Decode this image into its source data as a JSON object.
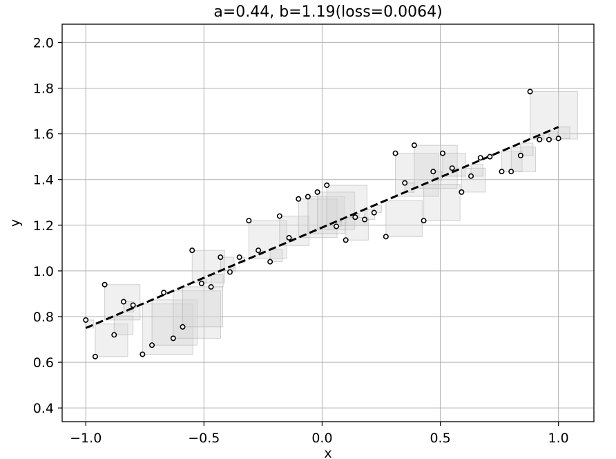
{
  "chart_data": {
    "type": "scatter",
    "title": "a=0.44, b=1.19(loss=0.0064)",
    "xlabel": "x",
    "ylabel": "y",
    "xlim": [
      -1.1,
      1.15
    ],
    "ylim": [
      0.34,
      2.08
    ],
    "grid": true,
    "xticks": [
      -1.0,
      -0.5,
      0.0,
      0.5,
      1.0
    ],
    "xtick_labels": [
      "−1.0",
      "−0.5",
      "0.0",
      "0.5",
      "1.0"
    ],
    "yticks": [
      0.4,
      0.6,
      0.8,
      1.0,
      1.2,
      1.4,
      1.6,
      1.8,
      2.0
    ],
    "ytick_labels": [
      "0.4",
      "0.6",
      "0.8",
      "1.0",
      "1.2",
      "1.4",
      "1.6",
      "1.8",
      "2.0"
    ],
    "fit_line": {
      "slope": 0.44,
      "intercept": 1.19,
      "x_range": [
        -1.0,
        1.0
      ],
      "style": "dashed",
      "color": "#000000"
    },
    "residual_squares": {
      "fill": "#d3d3d3",
      "opacity": 0.35,
      "edge": "#a0a0a0"
    },
    "points": [
      {
        "x": -1.0,
        "y": 0.785
      },
      {
        "x": -0.96,
        "y": 0.625
      },
      {
        "x": -0.92,
        "y": 0.94
      },
      {
        "x": -0.88,
        "y": 0.72
      },
      {
        "x": -0.84,
        "y": 0.865
      },
      {
        "x": -0.8,
        "y": 0.85
      },
      {
        "x": -0.76,
        "y": 0.635
      },
      {
        "x": -0.72,
        "y": 0.675
      },
      {
        "x": -0.67,
        "y": 0.905
      },
      {
        "x": -0.63,
        "y": 0.705
      },
      {
        "x": -0.59,
        "y": 0.755
      },
      {
        "x": -0.55,
        "y": 1.09
      },
      {
        "x": -0.51,
        "y": 0.945
      },
      {
        "x": -0.47,
        "y": 0.93
      },
      {
        "x": -0.43,
        "y": 1.06
      },
      {
        "x": -0.39,
        "y": 0.995
      },
      {
        "x": -0.35,
        "y": 1.06
      },
      {
        "x": -0.31,
        "y": 1.22
      },
      {
        "x": -0.27,
        "y": 1.09
      },
      {
        "x": -0.22,
        "y": 1.04
      },
      {
        "x": -0.18,
        "y": 1.24
      },
      {
        "x": -0.14,
        "y": 1.145
      },
      {
        "x": -0.1,
        "y": 1.315
      },
      {
        "x": -0.06,
        "y": 1.325
      },
      {
        "x": -0.02,
        "y": 1.345
      },
      {
        "x": 0.02,
        "y": 1.375
      },
      {
        "x": 0.06,
        "y": 1.195
      },
      {
        "x": 0.1,
        "y": 1.135
      },
      {
        "x": 0.14,
        "y": 1.235
      },
      {
        "x": 0.18,
        "y": 1.225
      },
      {
        "x": 0.22,
        "y": 1.255
      },
      {
        "x": 0.27,
        "y": 1.15
      },
      {
        "x": 0.31,
        "y": 1.515
      },
      {
        "x": 0.35,
        "y": 1.385
      },
      {
        "x": 0.39,
        "y": 1.55
      },
      {
        "x": 0.43,
        "y": 1.22
      },
      {
        "x": 0.47,
        "y": 1.435
      },
      {
        "x": 0.51,
        "y": 1.515
      },
      {
        "x": 0.55,
        "y": 1.45
      },
      {
        "x": 0.59,
        "y": 1.345
      },
      {
        "x": 0.63,
        "y": 1.415
      },
      {
        "x": 0.67,
        "y": 1.495
      },
      {
        "x": 0.71,
        "y": 1.5
      },
      {
        "x": 0.76,
        "y": 1.435
      },
      {
        "x": 0.8,
        "y": 1.435
      },
      {
        "x": 0.84,
        "y": 1.505
      },
      {
        "x": 0.88,
        "y": 1.785
      },
      {
        "x": 0.92,
        "y": 1.575
      },
      {
        "x": 0.96,
        "y": 1.575
      },
      {
        "x": 1.0,
        "y": 1.58
      }
    ]
  }
}
